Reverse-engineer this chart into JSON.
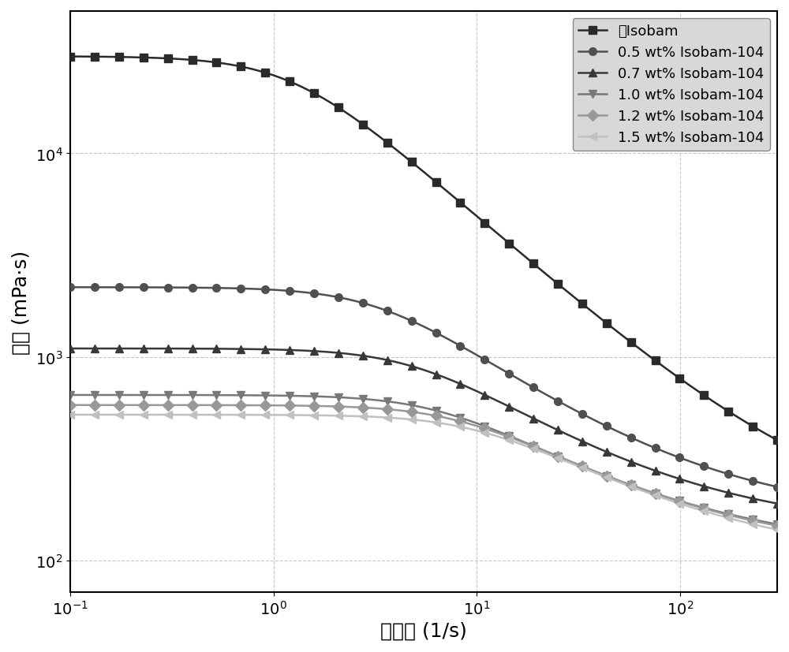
{
  "xlabel": "剪切率 (1/s)",
  "ylabel": "粘度 (mPa·s)",
  "xlim": [
    0.1,
    300
  ],
  "ylim": [
    70,
    50000
  ],
  "series": [
    {
      "label": "无Isobam",
      "color": "#2a2a2a",
      "marker": "s",
      "eta0": 30000,
      "eta_inf": 150,
      "lambda": 0.8,
      "n": 0.12
    },
    {
      "label": "0.5 wt% Isobam-104",
      "color": "#505050",
      "marker": "o",
      "eta0": 2200,
      "eta_inf": 160,
      "lambda": 0.3,
      "n": 0.25
    },
    {
      "label": "0.7 wt% Isobam-104",
      "color": "#383838",
      "marker": "^",
      "eta0": 1100,
      "eta_inf": 140,
      "lambda": 0.2,
      "n": 0.28
    },
    {
      "label": "1.0 wt% Isobam-104",
      "color": "#787878",
      "marker": "v",
      "eta0": 650,
      "eta_inf": 110,
      "lambda": 0.15,
      "n": 0.32
    },
    {
      "label": "1.2 wt% Isobam-104",
      "color": "#989898",
      "marker": "D",
      "eta0": 580,
      "eta_inf": 105,
      "lambda": 0.12,
      "n": 0.33
    },
    {
      "label": "1.5 wt% Isobam-104",
      "color": "#c0c0c0",
      "marker": "<",
      "eta0": 520,
      "eta_inf": 95,
      "lambda": 0.1,
      "n": 0.35
    }
  ],
  "grid_color": "#c8c8c8",
  "grid_linestyle": "--",
  "background_color": "#ffffff",
  "legend_fontsize": 13,
  "axis_label_fontsize": 18,
  "tick_fontsize": 14,
  "marker_size": 7,
  "linewidth": 1.8,
  "num_points": 300,
  "num_markers": 30
}
